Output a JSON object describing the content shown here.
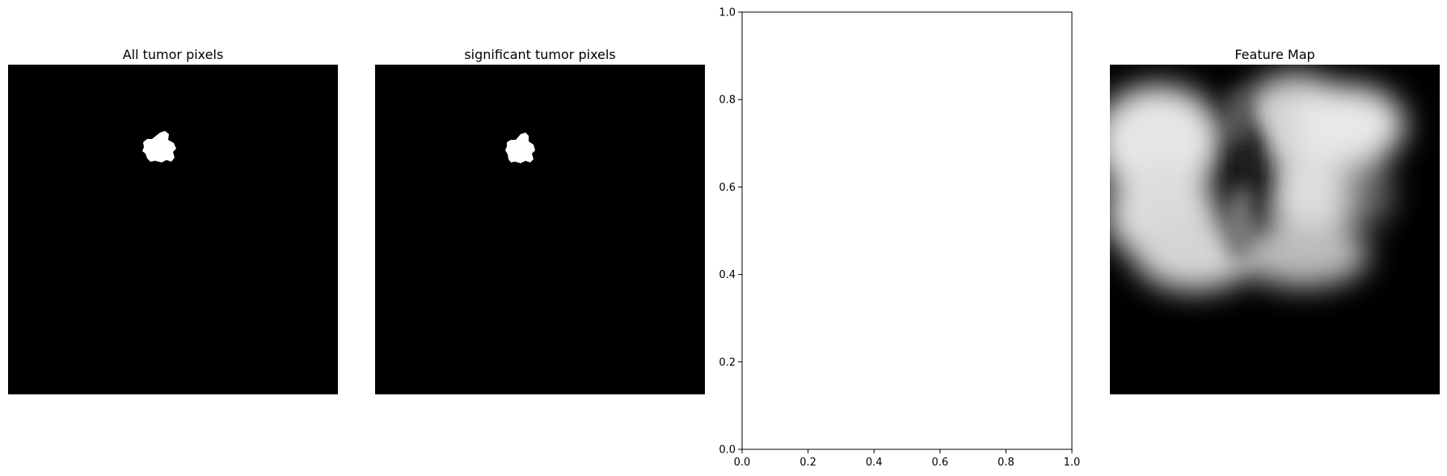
{
  "panels": [
    {
      "title": "All tumor pixels"
    },
    {
      "title": "significant tumor pixels"
    },
    {
      "title": ""
    },
    {
      "title": "Feature Map"
    }
  ],
  "chart_data": [
    {
      "type": "heatmap",
      "title": "All tumor pixels",
      "colormap": "gray",
      "content": "binary mask"
    },
    {
      "type": "heatmap",
      "title": "significant tumor pixels",
      "colormap": "gray",
      "content": "binary mask"
    },
    {
      "type": "line",
      "title": "",
      "series": [],
      "xlim": [
        0,
        1
      ],
      "ylim": [
        0,
        1
      ],
      "xticks": [
        "0.0",
        "0.2",
        "0.4",
        "0.6",
        "0.8",
        "1.0"
      ],
      "yticks": [
        "0.0",
        "0.2",
        "0.4",
        "0.6",
        "0.8",
        "1.0"
      ],
      "grid": false
    },
    {
      "type": "heatmap",
      "title": "Feature Map",
      "colormap": "gray",
      "content": "blurred feature map"
    }
  ],
  "colors": {
    "background": "#ffffff",
    "image_bg": "#000000",
    "mask": "#ffffff",
    "axis": "#000000"
  }
}
